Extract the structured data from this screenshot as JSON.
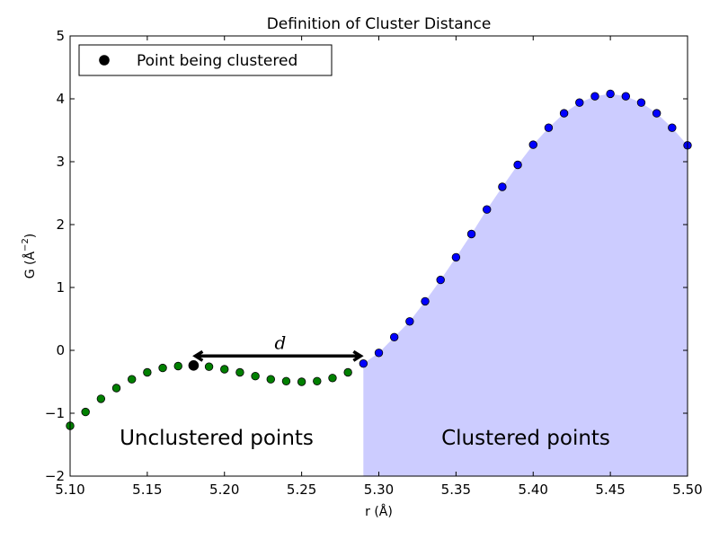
{
  "chart_data": {
    "type": "scatter",
    "title": "Definition of Cluster Distance",
    "xlabel": "r (Å)",
    "ylabel": "G (Å",
    "ylabel_exponent": "−2",
    "ylabel_close": ")",
    "xlim": [
      5.1,
      5.5
    ],
    "ylim": [
      -2,
      5
    ],
    "xticks": [
      "5.10",
      "5.15",
      "5.20",
      "5.25",
      "5.30",
      "5.35",
      "5.40",
      "5.45",
      "5.50"
    ],
    "yticks": [
      "−2",
      "−1",
      "0",
      "1",
      "2",
      "3",
      "4",
      "5"
    ],
    "grid": false,
    "legend_position": "top-left",
    "series": [
      {
        "role": "unclustered",
        "color": "#008000",
        "x": [
          5.1,
          5.11,
          5.12,
          5.13,
          5.14,
          5.15,
          5.16,
          5.17,
          5.18,
          5.19,
          5.2,
          5.21,
          5.22,
          5.23,
          5.24,
          5.25,
          5.26,
          5.27,
          5.28
        ],
        "y": [
          -1.2,
          -0.98,
          -0.77,
          -0.6,
          -0.46,
          -0.35,
          -0.28,
          -0.25,
          -0.24,
          -0.26,
          -0.3,
          -0.35,
          -0.41,
          -0.46,
          -0.49,
          -0.5,
          -0.49,
          -0.44,
          -0.35
        ]
      },
      {
        "role": "clustered",
        "color": "#0000ff",
        "x": [
          5.29,
          5.3,
          5.31,
          5.32,
          5.33,
          5.34,
          5.35,
          5.36,
          5.37,
          5.38,
          5.39,
          5.4,
          5.41,
          5.42,
          5.43,
          5.44,
          5.45,
          5.46,
          5.47,
          5.48,
          5.49,
          5.5
        ],
        "y": [
          -0.21,
          -0.04,
          0.21,
          0.46,
          0.78,
          1.12,
          1.48,
          1.85,
          2.24,
          2.6,
          2.95,
          3.27,
          3.54,
          3.77,
          3.94,
          4.04,
          4.08,
          4.04,
          3.94,
          3.77,
          3.54,
          3.26
        ]
      }
    ],
    "highlight_point": {
      "name": "Point being clustered",
      "x": 5.18,
      "y": -0.24,
      "color": "#000000"
    },
    "fill_color": "#ccccff",
    "legend": {
      "entries": [
        {
          "label": "Point being clustered"
        }
      ]
    },
    "annotations": {
      "distance_label": "d",
      "unclustered_label": "Unclustered points",
      "clustered_label": "Clustered points",
      "arrow_from_x": 5.18,
      "arrow_to_x": 5.29,
      "arrow_y": -0.09
    }
  }
}
